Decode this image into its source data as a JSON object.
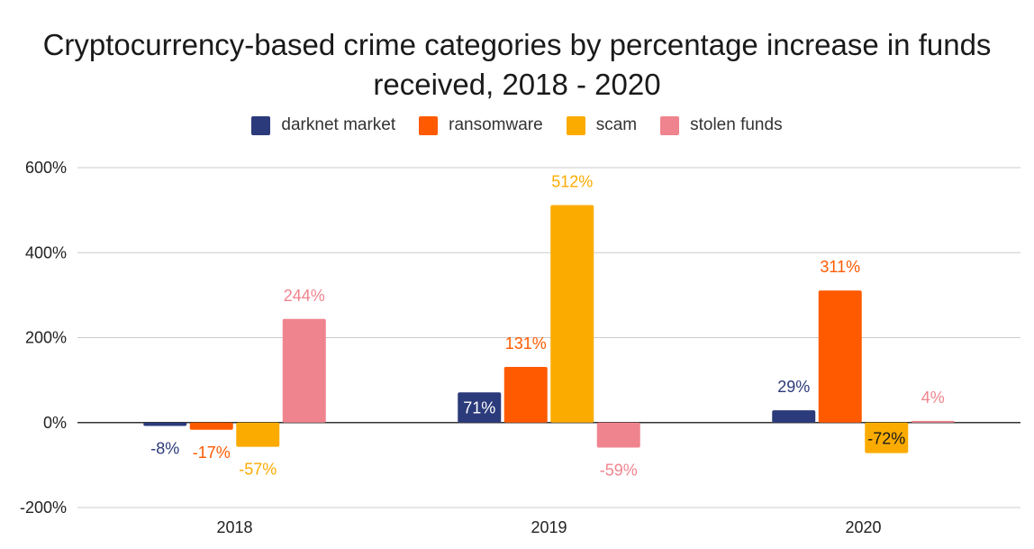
{
  "chart_data": {
    "type": "bar",
    "title": "Cryptocurrency-based crime categories by percentage increase in funds received, 2018 - 2020",
    "xlabel": "",
    "ylabel": "",
    "categories": [
      "2018",
      "2019",
      "2020"
    ],
    "series": [
      {
        "name": "darknet market",
        "color": "#2b3a7a",
        "values": [
          -8,
          71,
          29
        ],
        "labels": [
          "-8%",
          "71%",
          "29%"
        ],
        "label_colors": [
          "#2b3a7a",
          "#ffffff",
          "#2b3a7a"
        ]
      },
      {
        "name": "ransomware",
        "color": "#ff5a00",
        "values": [
          -17,
          131,
          311
        ],
        "labels": [
          "-17%",
          "131%",
          "311%"
        ],
        "label_colors": [
          "#ff5a00",
          "#ff5a00",
          "#ff5a00"
        ]
      },
      {
        "name": "scam",
        "color": "#fbab00",
        "values": [
          -57,
          512,
          -72
        ],
        "labels": [
          "-57%",
          "512%",
          "-72%"
        ],
        "label_colors": [
          "#fbab00",
          "#fbab00",
          "#1a1a1a"
        ]
      },
      {
        "name": "stolen funds",
        "color": "#f0848e",
        "values": [
          244,
          -59,
          4
        ],
        "labels": [
          "244%",
          "-59%",
          "4%"
        ],
        "label_colors": [
          "#f0848e",
          "#f0848e",
          "#f0848e"
        ]
      }
    ],
    "ylim": [
      -200,
      600
    ],
    "yticks": [
      -200,
      0,
      200,
      400,
      600
    ],
    "ytick_labels": [
      "-200%",
      "0%",
      "200%",
      "400%",
      "600%"
    ],
    "grid": true,
    "legend_position": "top-center"
  }
}
